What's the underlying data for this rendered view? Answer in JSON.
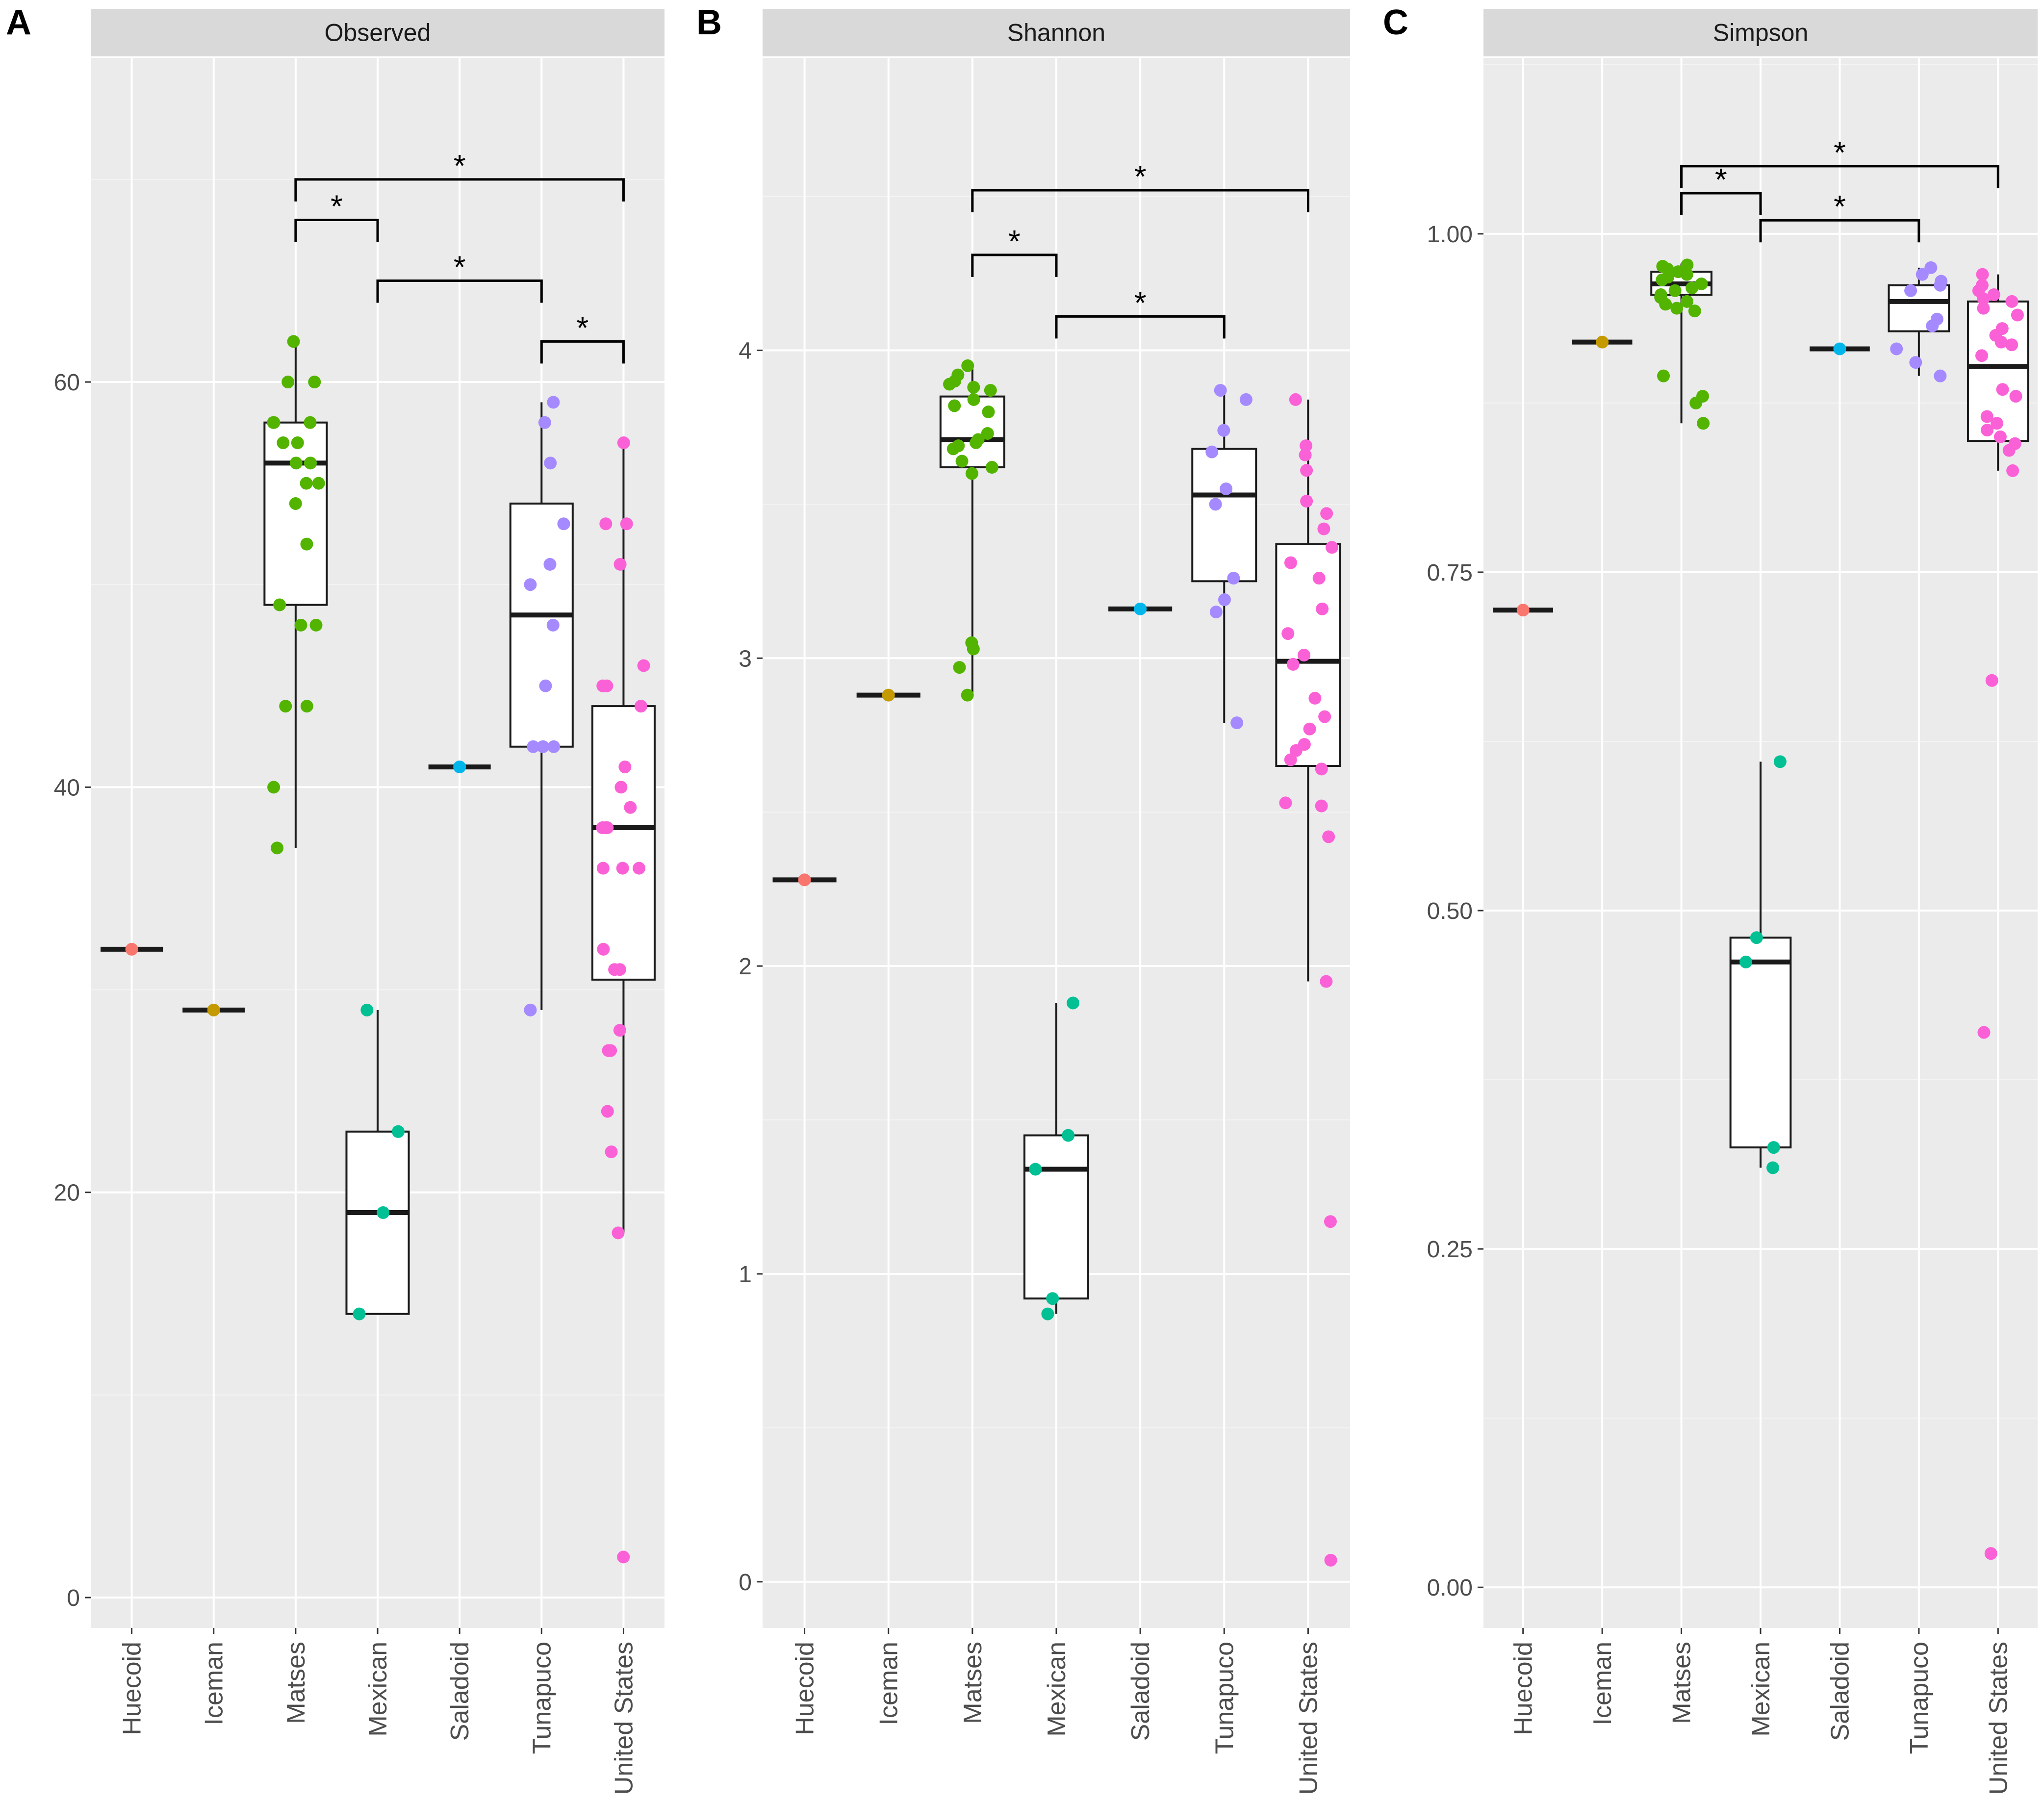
{
  "chart_data": [
    {
      "type": "box",
      "panel_label": "A",
      "title": "Observed",
      "categories": [
        "Huecoid",
        "Iceman",
        "Matses",
        "Mexican",
        "Saladoid",
        "Tunapuco",
        "United States"
      ],
      "ylim": [
        -1.5,
        76
      ],
      "yticks": [
        0,
        20,
        40,
        60
      ],
      "ytick_labels": [
        "0",
        "20",
        "40",
        "60"
      ],
      "boxes": [
        {
          "q1": 32,
          "median": 32,
          "q3": 32,
          "lo": 32,
          "hi": 32
        },
        {
          "q1": 29,
          "median": 29,
          "q3": 29,
          "lo": 29,
          "hi": 29
        },
        {
          "q1": 49,
          "median": 56,
          "q3": 58,
          "lo": 37,
          "hi": 62
        },
        {
          "q1": 14,
          "median": 19,
          "q3": 23,
          "lo": 14,
          "hi": 29
        },
        {
          "q1": 41,
          "median": 41,
          "q3": 41,
          "lo": 41,
          "hi": 41
        },
        {
          "q1": 42,
          "median": 48.5,
          "q3": 54,
          "lo": 29,
          "hi": 59
        },
        {
          "q1": 30.5,
          "median": 38,
          "q3": 44,
          "lo": 18,
          "hi": 57
        }
      ],
      "points": [
        [
          32
        ],
        [
          29
        ],
        [
          62,
          60,
          60,
          58,
          58,
          58,
          57,
          57,
          56,
          56,
          55,
          55,
          54,
          52,
          49,
          48,
          48,
          44,
          44,
          40,
          37
        ],
        [
          29,
          23,
          19,
          14
        ],
        [
          41
        ],
        [
          59,
          58,
          56,
          53,
          51,
          50,
          48,
          45,
          42,
          42,
          42,
          29
        ],
        [
          57,
          53,
          53,
          51,
          46,
          45,
          45,
          44,
          41,
          40,
          39,
          38,
          38,
          38,
          36,
          36,
          36,
          32,
          31,
          31,
          28,
          27,
          27,
          24,
          22,
          18,
          2
        ]
      ],
      "brackets": [
        {
          "from": "Matses",
          "to": "United States",
          "y": 70,
          "label": "*"
        },
        {
          "from": "Matses",
          "to": "Mexican",
          "y": 68,
          "label": "*"
        },
        {
          "from": "Mexican",
          "to": "Tunapuco",
          "y": 65,
          "label": "*"
        },
        {
          "from": "Tunapuco",
          "to": "United States",
          "y": 62,
          "label": "*"
        }
      ]
    },
    {
      "type": "box",
      "panel_label": "B",
      "title": "Shannon",
      "categories": [
        "Huecoid",
        "Iceman",
        "Matses",
        "Mexican",
        "Saladoid",
        "Tunapuco",
        "United States"
      ],
      "ylim": [
        -0.15,
        4.95
      ],
      "yticks": [
        0,
        1,
        2,
        3,
        4
      ],
      "ytick_labels": [
        "0",
        "1",
        "2",
        "3",
        "4"
      ],
      "boxes": [
        {
          "q1": 2.28,
          "median": 2.28,
          "q3": 2.28,
          "lo": 2.28,
          "hi": 2.28
        },
        {
          "q1": 2.88,
          "median": 2.88,
          "q3": 2.88,
          "lo": 2.88,
          "hi": 2.88
        },
        {
          "q1": 3.62,
          "median": 3.71,
          "q3": 3.85,
          "lo": 2.88,
          "hi": 3.95
        },
        {
          "q1": 0.92,
          "median": 1.34,
          "q3": 1.45,
          "lo": 0.87,
          "hi": 1.88
        },
        {
          "q1": 3.16,
          "median": 3.16,
          "q3": 3.16,
          "lo": 3.16,
          "hi": 3.16
        },
        {
          "q1": 3.25,
          "median": 3.53,
          "q3": 3.68,
          "lo": 2.79,
          "hi": 3.88
        },
        {
          "q1": 2.65,
          "median": 2.99,
          "q3": 3.37,
          "lo": 1.95,
          "hi": 3.84
        }
      ],
      "points": [
        [
          2.28
        ],
        [
          2.88
        ],
        [
          3.95,
          3.92,
          3.9,
          3.89,
          3.88,
          3.87,
          3.84,
          3.82,
          3.8,
          3.73,
          3.71,
          3.7,
          3.69,
          3.68,
          3.64,
          3.62,
          3.6,
          3.05,
          3.03,
          2.97,
          2.88
        ],
        [
          1.88,
          1.45,
          1.34,
          0.92,
          0.87
        ],
        [
          3.16
        ],
        [
          3.87,
          3.84,
          3.74,
          3.67,
          3.55,
          3.5,
          3.26,
          3.19,
          3.15,
          2.79
        ],
        [
          3.84,
          3.69,
          3.66,
          3.61,
          3.51,
          3.47,
          3.42,
          3.36,
          3.31,
          3.26,
          3.16,
          3.08,
          3.01,
          2.98,
          2.87,
          2.81,
          2.77,
          2.72,
          2.7,
          2.67,
          2.64,
          2.53,
          2.52,
          2.42,
          1.95,
          1.17,
          0.07
        ]
      ],
      "brackets": [
        {
          "from": "Matses",
          "to": "United States",
          "y": 4.52,
          "label": "*"
        },
        {
          "from": "Matses",
          "to": "Mexican",
          "y": 4.31,
          "label": "*"
        },
        {
          "from": "Mexican",
          "to": "Tunapuco",
          "y": 4.11,
          "label": "*"
        }
      ]
    },
    {
      "type": "box",
      "panel_label": "C",
      "title": "Simpson",
      "categories": [
        "Huecoid",
        "Iceman",
        "Matses",
        "Mexican",
        "Saladoid",
        "Tunapuco",
        "United States"
      ],
      "ylim": [
        -0.03,
        1.13
      ],
      "yticks": [
        0,
        0.25,
        0.5,
        0.75,
        1.0
      ],
      "ytick_labels": [
        "0.00",
        "0.25",
        "0.50",
        "0.75",
        "1.00"
      ],
      "boxes": [
        {
          "q1": 0.722,
          "median": 0.722,
          "q3": 0.722,
          "lo": 0.722,
          "hi": 0.722
        },
        {
          "q1": 0.92,
          "median": 0.92,
          "q3": 0.92,
          "lo": 0.92,
          "hi": 0.92
        },
        {
          "q1": 0.955,
          "median": 0.963,
          "q3": 0.972,
          "lo": 0.86,
          "hi": 0.978
        },
        {
          "q1": 0.325,
          "median": 0.462,
          "q3": 0.48,
          "lo": 0.31,
          "hi": 0.61
        },
        {
          "q1": 0.915,
          "median": 0.915,
          "q3": 0.915,
          "lo": 0.915,
          "hi": 0.915
        },
        {
          "q1": 0.928,
          "median": 0.95,
          "q3": 0.962,
          "lo": 0.895,
          "hi": 0.975
        },
        {
          "q1": 0.847,
          "median": 0.902,
          "q3": 0.95,
          "lo": 0.825,
          "hi": 0.97
        }
      ],
      "points": [
        [
          0.722
        ],
        [
          0.92
        ],
        [
          0.977,
          0.976,
          0.974,
          0.972,
          0.97,
          0.968,
          0.966,
          0.963,
          0.96,
          0.958,
          0.955,
          0.953,
          0.95,
          0.948,
          0.945,
          0.943,
          0.895,
          0.88,
          0.875,
          0.86
        ],
        [
          0.61,
          0.48,
          0.462,
          0.325,
          0.31
        ],
        [
          0.915
        ],
        [
          0.975,
          0.97,
          0.965,
          0.962,
          0.958,
          0.937,
          0.932,
          0.915,
          0.905,
          0.895
        ],
        [
          0.97,
          0.962,
          0.958,
          0.955,
          0.952,
          0.95,
          0.945,
          0.94,
          0.93,
          0.925,
          0.92,
          0.918,
          0.91,
          0.885,
          0.88,
          0.865,
          0.86,
          0.855,
          0.85,
          0.845,
          0.84,
          0.825,
          0.67,
          0.41,
          0.025
        ]
      ],
      "brackets": [
        {
          "from": "Matses",
          "to": "United States",
          "y": 1.05,
          "label": "*"
        },
        {
          "from": "Matses",
          "to": "Mexican",
          "y": 1.03,
          "label": "*"
        },
        {
          "from": "Mexican",
          "to": "Tunapuco",
          "y": 1.01,
          "label": "*"
        }
      ]
    }
  ],
  "group_colors": {
    "Huecoid": "#F8766D",
    "Iceman": "#C49A00",
    "Matses": "#53B400",
    "Mexican": "#00C094",
    "Saladoid": "#00B6EB",
    "Tunapuco": "#A58AFF",
    "United States": "#FB61D7"
  },
  "style_colors": {
    "panel_background": "#EBEBEB",
    "strip_background": "#D9D9D9",
    "grid_major": "#FFFFFF",
    "grid_minor": "#F4F4F4",
    "box_line": "#1a1a1a",
    "tick_text": "#4d4d4d"
  }
}
